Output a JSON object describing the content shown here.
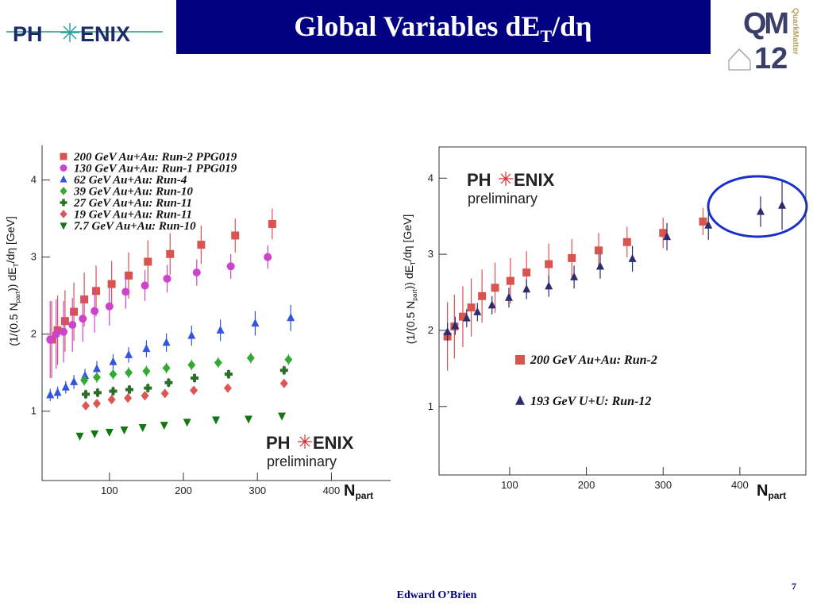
{
  "header": {
    "title": [
      "Global Variables dE",
      "T",
      "/dη"
    ],
    "logo_left": [
      "PH",
      "ENIX"
    ],
    "logo_right": [
      "QM",
      "12",
      "QuarkMatter"
    ]
  },
  "chart_data": [
    {
      "type": "scatter",
      "ylabel": [
        "(1/(0.5 N",
        "part",
        ")) dE",
        "T",
        "/dη [GeV]"
      ],
      "xlabel": [
        "N",
        "part"
      ],
      "xlim": [
        9,
        480
      ],
      "ylim": [
        0.1,
        4.45
      ],
      "xticks": [
        100,
        200,
        300,
        400
      ],
      "yticks": [
        1,
        2,
        3,
        4
      ],
      "legend": "upper left",
      "watermark": {
        "logo": [
          "PH",
          "ENIX"
        ],
        "text": "preliminary"
      },
      "series": [
        {
          "name": "200 GeV Au+Au: Run-2 PPG019",
          "color": "#d9534f",
          "marker": "square",
          "x": [
            22,
            30,
            40,
            52,
            66,
            82,
            103,
            126,
            152,
            182,
            224,
            270,
            320
          ],
          "values": [
            1.93,
            2.05,
            2.17,
            2.29,
            2.45,
            2.56,
            2.65,
            2.76,
            2.94,
            3.04,
            3.16,
            3.28,
            3.43
          ],
          "errors": [
            0.5,
            0.45,
            0.4,
            0.38,
            0.35,
            0.33,
            0.3,
            0.3,
            0.28,
            0.27,
            0.25,
            0.22,
            0.2
          ]
        },
        {
          "name": "130 GeV Au+Au: Run-1 PPG019",
          "color": "#cc44cc",
          "marker": "circle",
          "x": [
            20,
            28,
            38,
            50,
            64,
            80,
            100,
            122,
            148,
            178,
            218,
            264,
            314
          ],
          "values": [
            1.93,
            2.0,
            2.03,
            2.12,
            2.2,
            2.3,
            2.36,
            2.55,
            2.63,
            2.72,
            2.8,
            2.88,
            3.0
          ],
          "errors": [
            0.5,
            0.45,
            0.4,
            0.35,
            0.3,
            0.28,
            0.25,
            0.22,
            0.2,
            0.18,
            0.17,
            0.16,
            0.15
          ]
        },
        {
          "name": "62 GeV Au+Au: Run-4",
          "color": "#3355dd",
          "marker": "triangle-up",
          "x": [
            20,
            30,
            41,
            52,
            67,
            83,
            105,
            126,
            150,
            177,
            211,
            250,
            297,
            345
          ],
          "values": [
            1.21,
            1.24,
            1.31,
            1.38,
            1.46,
            1.55,
            1.64,
            1.73,
            1.81,
            1.89,
            1.98,
            2.05,
            2.14,
            2.21
          ],
          "errors": [
            0.08,
            0.08,
            0.08,
            0.09,
            0.09,
            0.1,
            0.1,
            0.1,
            0.11,
            0.12,
            0.13,
            0.14,
            0.16,
            0.17
          ]
        },
        {
          "name": "39 GeV Au+Au: Run-10",
          "color": "#33aa33",
          "marker": "diamond",
          "x": [
            66,
            83,
            105,
            126,
            150,
            177,
            211,
            247,
            291,
            342
          ],
          "values": [
            1.4,
            1.44,
            1.48,
            1.5,
            1.52,
            1.56,
            1.6,
            1.63,
            1.69,
            1.67
          ],
          "errors": [
            0.07,
            0.07,
            0.07,
            0.07,
            0.07,
            0.07,
            0.07,
            0.07,
            0.07,
            0.07
          ]
        },
        {
          "name": "27 GeV Au+Au: Run-11",
          "color": "#2a6e2a",
          "marker": "cross",
          "x": [
            68,
            84,
            105,
            127,
            152,
            180,
            215,
            261,
            336
          ],
          "values": [
            1.22,
            1.24,
            1.26,
            1.28,
            1.3,
            1.37,
            1.43,
            1.48,
            1.53
          ],
          "errors": [
            0.06,
            0.06,
            0.06,
            0.06,
            0.06,
            0.06,
            0.06,
            0.06,
            0.06
          ]
        },
        {
          "name": "19 GeV Au+Au: Run-11",
          "color": "#dd5555",
          "marker": "diamond",
          "x": [
            68,
            83,
            103,
            125,
            148,
            175,
            214,
            260,
            336
          ],
          "values": [
            1.07,
            1.1,
            1.15,
            1.17,
            1.2,
            1.23,
            1.27,
            1.3,
            1.36
          ],
          "errors": [
            0.05,
            0.05,
            0.05,
            0.05,
            0.05,
            0.05,
            0.05,
            0.05,
            0.05
          ]
        },
        {
          "name": "7.7 GeV Au+Au: Run-10",
          "color": "#117711",
          "marker": "triangle-down",
          "x": [
            60,
            80,
            100,
            120,
            145,
            174,
            205,
            244,
            288,
            333
          ],
          "values": [
            0.68,
            0.71,
            0.73,
            0.76,
            0.79,
            0.82,
            0.86,
            0.89,
            0.9,
            0.94
          ]
        }
      ]
    },
    {
      "type": "scatter",
      "ylabel": [
        "(1/(0.5 N",
        "part",
        ")) dE",
        "T",
        "/dη [GeV]"
      ],
      "xlabel": [
        "N",
        "part"
      ],
      "xlim": [
        8,
        486
      ],
      "ylim": [
        0.1,
        4.41
      ],
      "xticks": [
        100,
        200,
        300,
        400
      ],
      "yticks": [
        1,
        2,
        3,
        4
      ],
      "legend": "lower center",
      "watermark": {
        "logo": [
          "PH",
          "ENIX"
        ],
        "text": "preliminary"
      },
      "series": [
        {
          "name": "200 GeV Au+Au: Run-2",
          "color": "#d9534f",
          "marker": "square",
          "x": [
            19,
            28,
            39,
            50,
            64,
            81,
            101,
            122,
            151,
            181,
            216,
            253,
            300,
            352
          ],
          "values": [
            1.92,
            2.05,
            2.18,
            2.3,
            2.45,
            2.56,
            2.65,
            2.76,
            2.87,
            2.95,
            3.05,
            3.16,
            3.28,
            3.43
          ],
          "errors": [
            0.45,
            0.42,
            0.4,
            0.38,
            0.35,
            0.33,
            0.3,
            0.28,
            0.27,
            0.25,
            0.23,
            0.2,
            0.2,
            0.18
          ]
        },
        {
          "name": "193 GeV U+U: Run-12",
          "color": "#2b2d6e",
          "marker": "triangle-up",
          "x": [
            19,
            29,
            44,
            58,
            77,
            99,
            122,
            151,
            184,
            218,
            260,
            305,
            359,
            427,
            455
          ],
          "values": [
            1.98,
            2.06,
            2.16,
            2.24,
            2.33,
            2.43,
            2.54,
            2.58,
            2.7,
            2.84,
            2.94,
            3.23,
            3.38,
            3.56,
            3.64
          ],
          "errors": [
            0.12,
            0.12,
            0.12,
            0.12,
            0.12,
            0.13,
            0.13,
            0.14,
            0.15,
            0.16,
            0.17,
            0.18,
            0.19,
            0.2,
            0.32
          ]
        }
      ]
    }
  ],
  "footer": {
    "author": "Edward O’Brien",
    "page": "7"
  }
}
